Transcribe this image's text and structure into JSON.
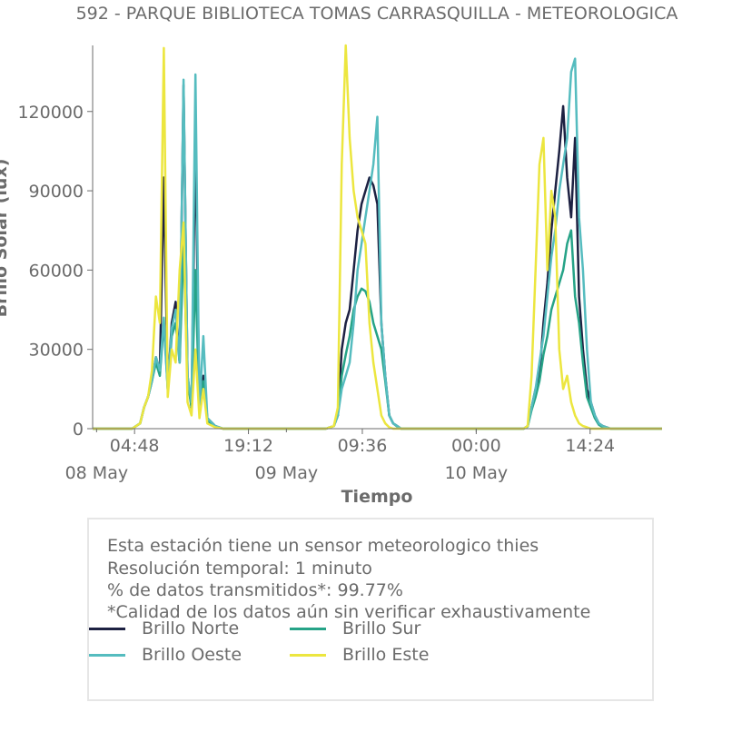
{
  "chart_data": {
    "type": "line",
    "title": "592 - PARQUE BIBLIOTECA TOMAS CARRASQUILLA - METEOROLOGICA",
    "xlabel": "Tiempo",
    "ylabel": "Brillo Solar (lux)",
    "x_tick_labels": [
      "04:48",
      "19:12",
      "09:36",
      "00:00",
      "14:24"
    ],
    "date_labels": [
      "08 May",
      "09 May",
      "10 May"
    ],
    "y_ticks": [
      0,
      30000,
      60000,
      90000,
      120000
    ],
    "ylim": [
      0,
      145000
    ],
    "xlim": [
      "2023-05-07T23:30",
      "2023-05-10T23:30"
    ],
    "grid": false,
    "series": [
      {
        "name": "Brillo Norte",
        "color": "#1d2142",
        "x": [
          "2023-05-07T23:30",
          "2023-05-08T02:00",
          "2023-05-08T03:30",
          "2023-05-08T04:30",
          "2023-05-08T05:30",
          "2023-05-08T06:00",
          "2023-05-08T06:30",
          "2023-05-08T07:00",
          "2023-05-08T07:30",
          "2023-05-08T08:00",
          "2023-05-08T08:30",
          "2023-05-08T09:00",
          "2023-05-08T09:30",
          "2023-05-08T10:00",
          "2023-05-08T10:30",
          "2023-05-08T11:00",
          "2023-05-08T11:30",
          "2023-05-08T12:00",
          "2023-05-08T12:30",
          "2023-05-08T13:00",
          "2023-05-08T13:30",
          "2023-05-08T14:00",
          "2023-05-08T15:00",
          "2023-05-08T16:00",
          "2023-05-08T17:00",
          "2023-05-09T02:00",
          "2023-05-09T05:00",
          "2023-05-09T06:00",
          "2023-05-09T06:30",
          "2023-05-09T07:00",
          "2023-05-09T07:30",
          "2023-05-09T08:00",
          "2023-05-09T08:30",
          "2023-05-09T09:00",
          "2023-05-09T09:30",
          "2023-05-09T10:00",
          "2023-05-09T10:30",
          "2023-05-09T11:00",
          "2023-05-09T11:30",
          "2023-05-09T12:00",
          "2023-05-09T12:30",
          "2023-05-09T13:00",
          "2023-05-09T13:30",
          "2023-05-09T14:00",
          "2023-05-09T14:30",
          "2023-05-09T15:00",
          "2023-05-09T16:00",
          "2023-05-09T17:00",
          "2023-05-10T02:00",
          "2023-05-10T05:00",
          "2023-05-10T06:00",
          "2023-05-10T06:30",
          "2023-05-10T07:00",
          "2023-05-10T07:30",
          "2023-05-10T08:00",
          "2023-05-10T08:30",
          "2023-05-10T09:00",
          "2023-05-10T09:30",
          "2023-05-10T10:00",
          "2023-05-10T10:30",
          "2023-05-10T11:00",
          "2023-05-10T11:30",
          "2023-05-10T12:00",
          "2023-05-10T12:30",
          "2023-05-10T13:00",
          "2023-05-10T13:30",
          "2023-05-10T14:00",
          "2023-05-10T14:30",
          "2023-05-10T15:00",
          "2023-05-10T15:30",
          "2023-05-10T16:00",
          "2023-05-10T17:00",
          "2023-05-10T23:30"
        ],
        "values": [
          0,
          0,
          0,
          0,
          2000,
          8000,
          12000,
          18000,
          27000,
          22000,
          95000,
          15000,
          40000,
          48000,
          25000,
          130000,
          20000,
          8000,
          110000,
          7000,
          20000,
          4000,
          1000,
          0,
          0,
          0,
          0,
          1000,
          5000,
          30000,
          40000,
          45000,
          60000,
          75000,
          85000,
          90000,
          95000,
          92000,
          85000,
          40000,
          20000,
          5000,
          2000,
          1000,
          0,
          0,
          0,
          0,
          0,
          0,
          0,
          1000,
          8000,
          15000,
          20000,
          40000,
          55000,
          75000,
          90000,
          105000,
          122000,
          95000,
          80000,
          110000,
          50000,
          30000,
          15000,
          10000,
          5000,
          2000,
          1000,
          0,
          0
        ]
      },
      {
        "name": "Brillo Sur",
        "color": "#26a387",
        "x": [
          "2023-05-07T23:30",
          "2023-05-08T02:00",
          "2023-05-08T03:30",
          "2023-05-08T04:30",
          "2023-05-08T05:30",
          "2023-05-08T06:00",
          "2023-05-08T06:30",
          "2023-05-08T07:00",
          "2023-05-08T07:30",
          "2023-05-08T08:00",
          "2023-05-08T08:30",
          "2023-05-08T09:00",
          "2023-05-08T09:30",
          "2023-05-08T10:00",
          "2023-05-08T10:30",
          "2023-05-08T11:00",
          "2023-05-08T11:30",
          "2023-05-08T12:00",
          "2023-05-08T12:30",
          "2023-05-08T13:00",
          "2023-05-08T13:30",
          "2023-05-08T14:00",
          "2023-05-08T15:00",
          "2023-05-08T16:00",
          "2023-05-08T17:00",
          "2023-05-09T02:00",
          "2023-05-09T05:00",
          "2023-05-09T06:00",
          "2023-05-09T06:30",
          "2023-05-09T07:00",
          "2023-05-09T07:30",
          "2023-05-09T08:00",
          "2023-05-09T08:30",
          "2023-05-09T09:00",
          "2023-05-09T09:30",
          "2023-05-09T10:00",
          "2023-05-09T10:30",
          "2023-05-09T11:00",
          "2023-05-09T11:30",
          "2023-05-09T12:00",
          "2023-05-09T12:30",
          "2023-05-09T13:00",
          "2023-05-09T13:30",
          "2023-05-09T14:00",
          "2023-05-09T14:30",
          "2023-05-09T15:00",
          "2023-05-09T16:00",
          "2023-05-09T17:00",
          "2023-05-10T02:00",
          "2023-05-10T05:00",
          "2023-05-10T06:00",
          "2023-05-10T06:30",
          "2023-05-10T07:00",
          "2023-05-10T07:30",
          "2023-05-10T08:00",
          "2023-05-10T08:30",
          "2023-05-10T09:00",
          "2023-05-10T09:30",
          "2023-05-10T10:00",
          "2023-05-10T10:30",
          "2023-05-10T11:00",
          "2023-05-10T11:30",
          "2023-05-10T12:00",
          "2023-05-10T12:30",
          "2023-05-10T13:00",
          "2023-05-10T13:30",
          "2023-05-10T14:00",
          "2023-05-10T14:30",
          "2023-05-10T15:00",
          "2023-05-10T15:30",
          "2023-05-10T16:00",
          "2023-05-10T17:00",
          "2023-05-10T23:30"
        ],
        "values": [
          0,
          0,
          0,
          0,
          2000,
          8000,
          12000,
          18000,
          25000,
          20000,
          40000,
          15000,
          35000,
          40000,
          25000,
          70000,
          18000,
          8000,
          60000,
          6000,
          18000,
          3000,
          800,
          0,
          0,
          0,
          0,
          1000,
          5000,
          20000,
          28000,
          35000,
          45000,
          50000,
          53000,
          52000,
          48000,
          40000,
          35000,
          30000,
          18000,
          5000,
          2000,
          800,
          0,
          0,
          0,
          0,
          0,
          0,
          0,
          800,
          7000,
          12000,
          18000,
          28000,
          35000,
          45000,
          50000,
          55000,
          60000,
          70000,
          75000,
          50000,
          40000,
          25000,
          12000,
          8000,
          4000,
          1500,
          500,
          0,
          0
        ]
      },
      {
        "name": "Brillo Oeste",
        "color": "#55bcbf",
        "x": [
          "2023-05-07T23:30",
          "2023-05-08T02:00",
          "2023-05-08T03:30",
          "2023-05-08T04:30",
          "2023-05-08T05:30",
          "2023-05-08T06:00",
          "2023-05-08T06:30",
          "2023-05-08T07:00",
          "2023-05-08T07:30",
          "2023-05-08T08:00",
          "2023-05-08T08:30",
          "2023-05-08T09:00",
          "2023-05-08T09:30",
          "2023-05-08T10:00",
          "2023-05-08T10:30",
          "2023-05-08T11:00",
          "2023-05-08T11:30",
          "2023-05-08T12:00",
          "2023-05-08T12:30",
          "2023-05-08T13:00",
          "2023-05-08T13:30",
          "2023-05-08T14:00",
          "2023-05-08T15:00",
          "2023-05-08T16:00",
          "2023-05-08T17:00",
          "2023-05-09T02:00",
          "2023-05-09T05:00",
          "2023-05-09T06:00",
          "2023-05-09T06:30",
          "2023-05-09T07:00",
          "2023-05-09T07:30",
          "2023-05-09T08:00",
          "2023-05-09T08:30",
          "2023-05-09T09:00",
          "2023-05-09T09:30",
          "2023-05-09T10:00",
          "2023-05-09T10:30",
          "2023-05-09T11:00",
          "2023-05-09T11:30",
          "2023-05-09T12:00",
          "2023-05-09T12:30",
          "2023-05-09T13:00",
          "2023-05-09T13:30",
          "2023-05-09T14:00",
          "2023-05-09T14:30",
          "2023-05-09T15:00",
          "2023-05-09T16:00",
          "2023-05-09T17:00",
          "2023-05-10T02:00",
          "2023-05-10T05:00",
          "2023-05-10T06:00",
          "2023-05-10T06:30",
          "2023-05-10T07:00",
          "2023-05-10T07:30",
          "2023-05-10T08:00",
          "2023-05-10T08:30",
          "2023-05-10T09:00",
          "2023-05-10T09:30",
          "2023-05-10T10:00",
          "2023-05-10T10:30",
          "2023-05-10T11:00",
          "2023-05-10T11:30",
          "2023-05-10T12:00",
          "2023-05-10T12:30",
          "2023-05-10T13:00",
          "2023-05-10T13:30",
          "2023-05-10T14:00",
          "2023-05-10T14:30",
          "2023-05-10T15:00",
          "2023-05-10T15:30",
          "2023-05-10T16:00",
          "2023-05-10T17:00",
          "2023-05-10T23:30"
        ],
        "values": [
          0,
          0,
          0,
          0,
          2000,
          8000,
          12000,
          18000,
          27000,
          22000,
          42000,
          15000,
          38000,
          45000,
          25000,
          132000,
          20000,
          10000,
          134000,
          8000,
          35000,
          4000,
          1000,
          0,
          0,
          0,
          0,
          1000,
          5000,
          15000,
          20000,
          25000,
          40000,
          60000,
          70000,
          80000,
          90000,
          100000,
          118000,
          40000,
          20000,
          5000,
          2000,
          1000,
          0,
          0,
          0,
          0,
          0,
          0,
          0,
          1000,
          8000,
          15000,
          25000,
          35000,
          50000,
          65000,
          75000,
          90000,
          100000,
          110000,
          135000,
          140000,
          80000,
          60000,
          30000,
          10000,
          5000,
          2000,
          1000,
          0,
          0
        ]
      },
      {
        "name": "Brillo Este",
        "color": "#ece63f",
        "x": [
          "2023-05-07T23:30",
          "2023-05-08T02:00",
          "2023-05-08T03:30",
          "2023-05-08T04:30",
          "2023-05-08T05:30",
          "2023-05-08T06:00",
          "2023-05-08T06:30",
          "2023-05-08T07:00",
          "2023-05-08T07:30",
          "2023-05-08T08:00",
          "2023-05-08T08:30",
          "2023-05-08T09:00",
          "2023-05-08T09:30",
          "2023-05-08T10:00",
          "2023-05-08T10:30",
          "2023-05-08T11:00",
          "2023-05-08T11:30",
          "2023-05-08T12:00",
          "2023-05-08T12:30",
          "2023-05-08T13:00",
          "2023-05-08T13:30",
          "2023-05-08T14:00",
          "2023-05-08T15:00",
          "2023-05-08T16:00",
          "2023-05-08T17:00",
          "2023-05-09T02:00",
          "2023-05-09T05:00",
          "2023-05-09T06:00",
          "2023-05-09T06:30",
          "2023-05-09T07:00",
          "2023-05-09T07:30",
          "2023-05-09T08:00",
          "2023-05-09T08:30",
          "2023-05-09T09:00",
          "2023-05-09T09:30",
          "2023-05-09T10:00",
          "2023-05-09T10:30",
          "2023-05-09T11:00",
          "2023-05-09T11:30",
          "2023-05-09T12:00",
          "2023-05-09T12:30",
          "2023-05-09T13:00",
          "2023-05-09T13:30",
          "2023-05-09T14:00",
          "2023-05-09T14:30",
          "2023-05-09T15:00",
          "2023-05-09T16:00",
          "2023-05-09T17:00",
          "2023-05-10T02:00",
          "2023-05-10T05:00",
          "2023-05-10T06:00",
          "2023-05-10T06:30",
          "2023-05-10T07:00",
          "2023-05-10T07:30",
          "2023-05-10T08:00",
          "2023-05-10T08:30",
          "2023-05-10T09:00",
          "2023-05-10T09:30",
          "2023-05-10T10:00",
          "2023-05-10T10:30",
          "2023-05-10T11:00",
          "2023-05-10T11:30",
          "2023-05-10T12:00",
          "2023-05-10T12:30",
          "2023-05-10T13:00",
          "2023-05-10T13:30",
          "2023-05-10T14:00",
          "2023-05-10T14:30",
          "2023-05-10T15:00",
          "2023-05-10T15:30",
          "2023-05-10T16:00",
          "2023-05-10T17:00",
          "2023-05-10T23:30"
        ],
        "values": [
          0,
          0,
          0,
          0,
          2000,
          8000,
          12000,
          22000,
          50000,
          40000,
          144000,
          12000,
          30000,
          25000,
          60000,
          78000,
          10000,
          5000,
          30000,
          4000,
          15000,
          2000,
          500,
          0,
          0,
          0,
          0,
          1000,
          8000,
          100000,
          145000,
          110000,
          90000,
          80000,
          75000,
          70000,
          40000,
          25000,
          15000,
          5000,
          2000,
          500,
          0,
          0,
          0,
          0,
          0,
          0,
          0,
          0,
          0,
          1000,
          20000,
          60000,
          100000,
          110000,
          60000,
          90000,
          80000,
          30000,
          15000,
          20000,
          10000,
          5000,
          2000,
          1000,
          500,
          0,
          0,
          0,
          0,
          0,
          0
        ]
      }
    ],
    "legend_position": "bottom"
  },
  "info": {
    "line1": "Esta estación tiene un sensor meteorologico thies",
    "line2": "Resolución temporal: 1 minuto",
    "line3": "% de datos transmitidos*: 99.77%",
    "line4": "*Calidad de los datos aún sin verificar exhaustivamente"
  },
  "legend": {
    "items": [
      {
        "label": "Brillo Norte",
        "color": "#1d2142"
      },
      {
        "label": "Brillo Sur",
        "color": "#26a387"
      },
      {
        "label": "Brillo Oeste",
        "color": "#55bcbf"
      },
      {
        "label": "Brillo Este",
        "color": "#ece63f"
      }
    ]
  }
}
